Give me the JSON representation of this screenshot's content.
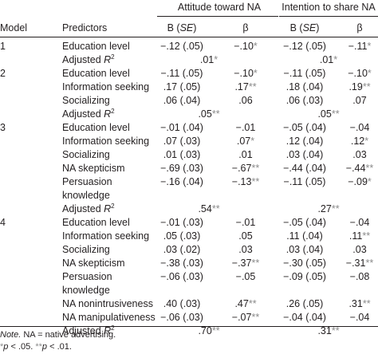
{
  "header": {
    "model": "Model",
    "predictors": "Predictors",
    "group_attitude": "Attitude toward NA",
    "group_intention": "Intention to share NA",
    "b_prefix": "B (",
    "se": "SE",
    "b_suffix": ")",
    "beta": "β"
  },
  "rows": [
    {
      "model": "1",
      "predictor": "Education level",
      "a_b": "−.12 (.05)",
      "a_beta": "−.10",
      "a_beta_sig": "*",
      "i_b": "−.12 (.05)",
      "i_beta": "−.11",
      "i_beta_sig": "*"
    },
    {
      "predictor": "Adjusted ",
      "r2": true,
      "a_mid": ".01",
      "a_mid_sig": "*",
      "i_mid": ".01",
      "i_mid_sig": "*"
    },
    {
      "model": "2",
      "predictor": "Education level",
      "a_b": "−.11 (.05)",
      "a_beta": "−.10",
      "a_beta_sig": "*",
      "i_b": "−.11 (.05)",
      "i_beta": "−.10",
      "i_beta_sig": "*"
    },
    {
      "predictor": "Information seeking",
      "a_b": ".17 (.05)",
      "a_beta": ".17",
      "a_beta_sig": "**",
      "i_b": ".18 (.04)",
      "i_beta": ".19",
      "i_beta_sig": "**"
    },
    {
      "predictor": "Socializing",
      "a_b": ".06 (.04)",
      "a_beta": ".06",
      "i_b": ".06 (.03)",
      "i_beta": ".07"
    },
    {
      "predictor": "Adjusted ",
      "r2": true,
      "a_mid": ".05",
      "a_mid_sig": "**",
      "i_mid": ".05",
      "i_mid_sig": "**"
    },
    {
      "model": "3",
      "predictor": "Education level",
      "a_b": "−.01 (.04)",
      "a_beta": "−.01",
      "i_b": "−.05 (.04)",
      "i_beta": "−.04"
    },
    {
      "predictor": "Information seeking",
      "a_b": ".07 (.03)",
      "a_beta": ".07",
      "a_beta_sig": "*",
      "i_b": ".12 (.04)",
      "i_beta": ".12",
      "i_beta_sig": "*"
    },
    {
      "predictor": "Socializing",
      "a_b": ".01 (.03)",
      "a_beta": ".01",
      "i_b": ".03 (.04)",
      "i_beta": ".03"
    },
    {
      "predictor": "NA skepticism",
      "a_b": "−.69 (.03)",
      "a_beta": "−.67",
      "a_beta_sig": "**",
      "i_b": "−.44 (.04)",
      "i_beta": "−.44",
      "i_beta_sig": "**"
    },
    {
      "predictor": "Persuasion",
      "a_b": "−.16 (.04)",
      "a_beta": "−.13",
      "a_beta_sig": "**",
      "i_b": "−.11 (.05)",
      "i_beta": "−.09",
      "i_beta_sig": "*"
    },
    {
      "predictor": "knowledge"
    },
    {
      "predictor": "Adjusted ",
      "r2": true,
      "a_mid": ".54",
      "a_mid_sig": "**",
      "i_mid": ".27",
      "i_mid_sig": "**"
    },
    {
      "model": "4",
      "predictor": "Education level",
      "a_b": "−.01 (.03)",
      "a_beta": "−.01",
      "i_b": "−.05 (.04)",
      "i_beta": "−.04"
    },
    {
      "predictor": "Information seeking",
      "a_b": ".05 (.03)",
      "a_beta": ".05",
      "i_b": ".11 (.04)",
      "i_beta": ".11",
      "i_beta_sig": "**"
    },
    {
      "predictor": "Socializing",
      "a_b": ".03 (.02)",
      "a_beta": ".03",
      "i_b": ".03 (.04)",
      "i_beta": ".03"
    },
    {
      "predictor": "NA skepticism",
      "a_b": "−.38 (.03)",
      "a_beta": "−.37",
      "a_beta_sig": "**",
      "i_b": "−.30 (.05)",
      "i_beta": "−.31",
      "i_beta_sig": "**"
    },
    {
      "predictor": "Persuasion",
      "a_b": "−.06 (.03)",
      "a_beta": "−.05",
      "i_b": "−.09 (.05)",
      "i_beta": "−.08"
    },
    {
      "predictor": "knowledge"
    },
    {
      "predictor": "NA nonintrusiveness",
      "a_b": ".40 (.03)",
      "a_beta": ".47",
      "a_beta_sig": "**",
      "i_b": ".26 (.05)",
      "i_beta": ".31",
      "i_beta_sig": "**"
    },
    {
      "predictor": "NA manipulativeness",
      "a_b": "−.06 (.03)",
      "a_beta": "−.07",
      "a_beta_sig": "**",
      "i_b": "−.04 (.04)",
      "i_beta": "−.04"
    },
    {
      "predictor": "Adjusted ",
      "r2": true,
      "a_mid": ".70",
      "a_mid_sig": "**",
      "i_mid": ".31",
      "i_mid_sig": "**"
    }
  ],
  "note": {
    "note_label": "Note.",
    "note_text": " NA = native advertising.",
    "sig_1": "*",
    "p_1": "p",
    "lt_1": " < .05. ",
    "sig_2": "**",
    "p_2": "p",
    "lt_2": " < .01."
  },
  "r_label": "R",
  "r_sup": "2"
}
